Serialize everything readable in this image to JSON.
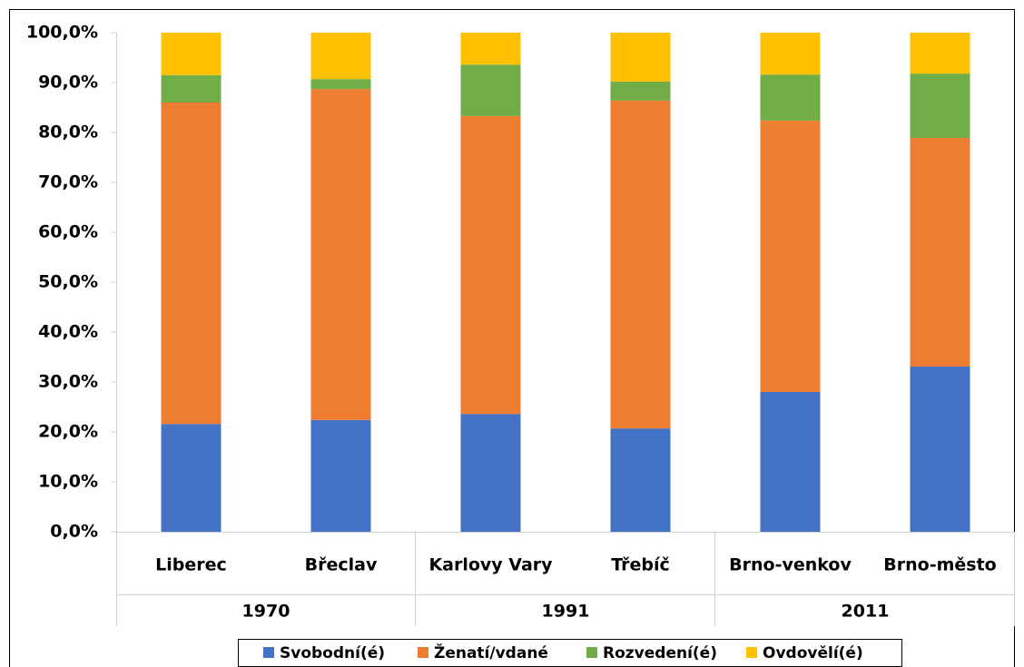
{
  "chart_data": {
    "type": "stacked_bar",
    "categories": [
      "Liberec",
      "Břeclav",
      "Karlovy Vary",
      "Třebíč",
      "Brno-venkov",
      "Brno-město"
    ],
    "groups": [
      {
        "label": "1970",
        "size": 2
      },
      {
        "label": "1991",
        "size": 2
      },
      {
        "label": "2011",
        "size": 2
      }
    ],
    "series": [
      {
        "name": "Svobodní(é)",
        "color": "#4472c4",
        "values": [
          21.6,
          22.4,
          23.6,
          20.7,
          28.0,
          33.1
        ]
      },
      {
        "name": "Ženatí/vdané",
        "color": "#ed7d31",
        "values": [
          64.4,
          66.3,
          59.7,
          65.7,
          54.4,
          45.8
        ]
      },
      {
        "name": "Rozvedení(é)",
        "color": "#70ad47",
        "values": [
          5.5,
          2.0,
          10.3,
          3.8,
          9.2,
          12.9
        ]
      },
      {
        "name": "Ovdovělí(é)",
        "color": "#ffc000",
        "values": [
          8.5,
          9.3,
          6.4,
          9.8,
          8.4,
          8.2
        ]
      }
    ],
    "ylim": [
      0,
      100
    ],
    "yticks": [
      {
        "value": 0,
        "label": "0,0%"
      },
      {
        "value": 10,
        "label": "10,0%"
      },
      {
        "value": 20,
        "label": "20,0%"
      },
      {
        "value": 30,
        "label": "30,0%"
      },
      {
        "value": 40,
        "label": "40,0%"
      },
      {
        "value": 50,
        "label": "50,0%"
      },
      {
        "value": 60,
        "label": "60,0%"
      },
      {
        "value": 70,
        "label": "70,0%"
      },
      {
        "value": 80,
        "label": "80,0%"
      },
      {
        "value": 90,
        "label": "90,0%"
      },
      {
        "value": 100,
        "label": "100,0%"
      }
    ],
    "legend": "bottom"
  }
}
